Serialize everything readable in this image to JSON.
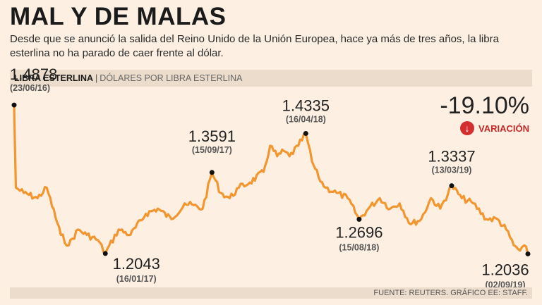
{
  "header": {
    "title": "MAL Y DE MALAS",
    "subtitle": "Desde que se anunció la salida del Reino Unido de la Unión Europea, hace ya más de tres años, la libra esterlina no ha parado de caer frente al dólar."
  },
  "series_label": {
    "name": "LIBRA ESTERLINA",
    "separator": "|",
    "unit": "DÓLARES POR LIBRA ESTERLINA"
  },
  "variation": {
    "value": "-19.10%",
    "label": "VARIACIÓN",
    "icon": "down-arrow-icon",
    "color": "#d32f2f"
  },
  "footer": {
    "source": "FUENTE: REUTERS. GRÁFICO EE: STAFF."
  },
  "chart_data": {
    "type": "line",
    "title": "LIBRA ESTERLINA",
    "ylabel": "DÓLARES POR LIBRA ESTERLINA",
    "xlabel": "",
    "x_range": [
      "2016-06-23",
      "2019-09-02"
    ],
    "ylim": [
      1.18,
      1.5
    ],
    "line_color": "#f2962f",
    "series": [
      {
        "name": "Libra esterlina",
        "x": [
          "2016-06-23",
          "2016-06-27",
          "2016-07-15",
          "2016-08-15",
          "2016-09-05",
          "2016-10-07",
          "2016-10-25",
          "2016-11-15",
          "2016-12-05",
          "2016-12-30",
          "2017-01-16",
          "2017-02-15",
          "2017-03-14",
          "2017-04-18",
          "2017-05-15",
          "2017-06-15",
          "2017-07-15",
          "2017-08-25",
          "2017-09-15",
          "2017-10-05",
          "2017-10-25",
          "2017-11-15",
          "2017-12-10",
          "2018-01-10",
          "2018-01-25",
          "2018-02-10",
          "2018-02-25",
          "2018-03-10",
          "2018-03-30",
          "2018-04-16",
          "2018-04-30",
          "2018-05-15",
          "2018-05-31",
          "2018-06-25",
          "2018-07-20",
          "2018-08-15",
          "2018-09-05",
          "2018-10-01",
          "2018-10-25",
          "2018-11-15",
          "2018-12-10",
          "2019-01-03",
          "2019-01-25",
          "2019-02-15",
          "2019-03-13",
          "2019-04-05",
          "2019-05-01",
          "2019-05-31",
          "2019-06-25",
          "2019-07-15",
          "2019-08-01",
          "2019-08-15",
          "2019-08-25",
          "2019-09-02"
        ],
        "values": [
          1.4878,
          1.33,
          1.32,
          1.31,
          1.33,
          1.24,
          1.22,
          1.25,
          1.24,
          1.23,
          1.2043,
          1.25,
          1.24,
          1.28,
          1.29,
          1.27,
          1.3,
          1.29,
          1.3591,
          1.32,
          1.31,
          1.33,
          1.34,
          1.36,
          1.41,
          1.39,
          1.4,
          1.39,
          1.41,
          1.4335,
          1.38,
          1.35,
          1.33,
          1.32,
          1.31,
          1.2696,
          1.29,
          1.31,
          1.29,
          1.3,
          1.26,
          1.27,
          1.31,
          1.29,
          1.3337,
          1.31,
          1.3,
          1.27,
          1.27,
          1.25,
          1.22,
          1.21,
          1.22,
          1.2036
        ]
      }
    ],
    "annotations": [
      {
        "value": "1.4878",
        "date": "(23/06/16)"
      },
      {
        "value": "1.2043",
        "date": "(16/01/17)"
      },
      {
        "value": "1.3591",
        "date": "(15/09/17)"
      },
      {
        "value": "1.4335",
        "date": "(16/04/18)"
      },
      {
        "value": "1.2696",
        "date": "(15/08/18)"
      },
      {
        "value": "1.3337",
        "date": "(13/03/19)"
      },
      {
        "value": "1.2036",
        "date": "(02/09/19)"
      }
    ]
  }
}
